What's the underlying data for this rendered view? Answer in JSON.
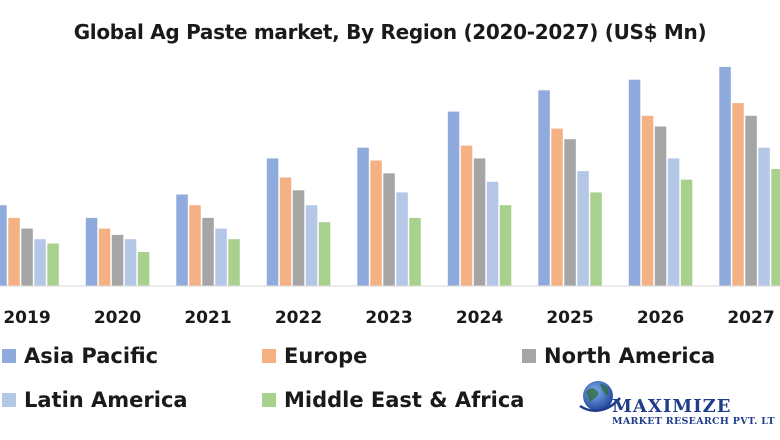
{
  "chart_data": {
    "type": "bar",
    "title": "Global Ag Paste market, By Region (2020-2027) (US$ Mn)",
    "categories": [
      "2019",
      "2020",
      "2021",
      "2022",
      "2023",
      "2024",
      "2025",
      "2026",
      "2027"
    ],
    "series": [
      {
        "name": "Asia Pacific",
        "color": "#8faadc",
        "values": [
          38,
          32,
          43,
          60,
          65,
          82,
          92,
          97,
          103
        ]
      },
      {
        "name": "Europe",
        "color": "#f4b183",
        "values": [
          32,
          27,
          38,
          51,
          59,
          66,
          74,
          80,
          86
        ]
      },
      {
        "name": "North America",
        "color": "#a5a5a5",
        "values": [
          27,
          24,
          32,
          45,
          53,
          60,
          69,
          75,
          80
        ]
      },
      {
        "name": "Latin America",
        "color": "#b4c7e7",
        "values": [
          22,
          22,
          27,
          38,
          44,
          49,
          54,
          60,
          65
        ]
      },
      {
        "name": "Middle East & Africa",
        "color": "#a9d18e",
        "values": [
          20,
          16,
          22,
          30,
          32,
          38,
          44,
          50,
          55
        ]
      }
    ],
    "ylim": [
      0,
      110
    ],
    "grid": false,
    "legend_position": "bottom"
  },
  "logo": {
    "name": "MAXIMIZE",
    "subtitle": "MARKET RESEARCH PVT. LT"
  }
}
